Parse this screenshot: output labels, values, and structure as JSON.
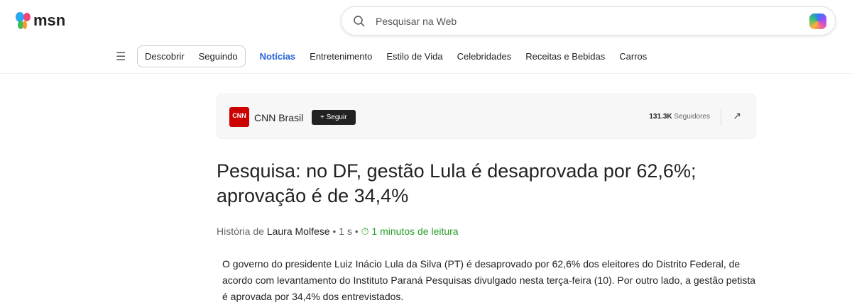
{
  "header": {
    "logo": "msn",
    "search_placeholder": "Pesquisar na Web"
  },
  "nav": {
    "tabs": [
      "Descobrir",
      "Seguindo"
    ],
    "items": [
      "Notícias",
      "Entretenimento",
      "Estilo de Vida",
      "Celebridades",
      "Receitas e Bebidas",
      "Carros"
    ],
    "active": "Notícias"
  },
  "source": {
    "logo": "CNN",
    "name": "CNN Brasil",
    "follow": "+ Seguir",
    "followers_count": "131.3K",
    "followers_label": "Seguidores"
  },
  "article": {
    "title": "Pesquisa: no DF, gestão Lula é desaprovada por 62,6%; aprovação é de 34,4%",
    "byline_prefix": "História de",
    "author": "Laura Molfese",
    "age": "1 s",
    "read_time": "1 minutos de leitura",
    "body": "O governo do presidente Luiz Inácio Lula da Silva (PT) é desaprovado por 62,6% dos eleitores do Distrito Federal, de acordo com levantamento do Instituto Paraná Pesquisas divulgado nesta terça-feira (10). Por outro lado, a gestão petista é aprovada por 34,4% dos entrevistados."
  }
}
